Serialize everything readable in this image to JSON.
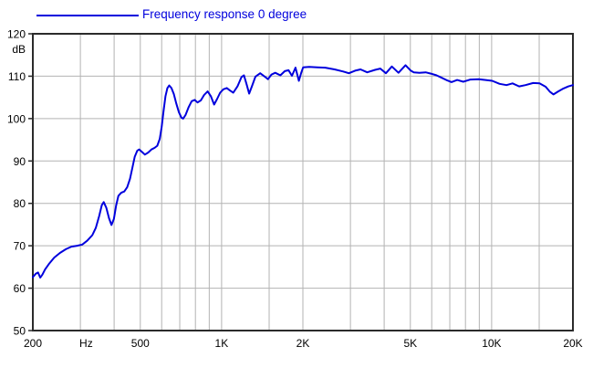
{
  "chart_data": {
    "type": "line",
    "legend": "Frequency response 0 degree",
    "x_scale": "log",
    "xlim": [
      200,
      20000
    ],
    "ylim": [
      50,
      120
    ],
    "y_unit_label": "dB",
    "x_unit_label": "Hz",
    "grid": true,
    "legend_position": "top-left",
    "colors": {
      "line": "#0000dd",
      "grid": "#b3b3b3",
      "axis": "#2b2b2b",
      "text": "#000000",
      "background": "#ffffff"
    },
    "x_gridlines": [
      300,
      400,
      500,
      600,
      700,
      800,
      900,
      1000,
      1500,
      2000,
      3000,
      4000,
      5000,
      6000,
      7000,
      8000,
      9000,
      10000,
      15000
    ],
    "y_gridlines": [
      60,
      70,
      80,
      90,
      100,
      110
    ],
    "x_ticks": [
      {
        "value": 200,
        "label": "200"
      },
      {
        "value": 315,
        "label": "Hz"
      },
      {
        "value": 500,
        "label": "500"
      },
      {
        "value": 1000,
        "label": "1K"
      },
      {
        "value": 2000,
        "label": "2K"
      },
      {
        "value": 5000,
        "label": "5K"
      },
      {
        "value": 10000,
        "label": "10K"
      },
      {
        "value": 20000,
        "label": "20K"
      }
    ],
    "y_ticks": [
      {
        "value": 120,
        "label": "120"
      },
      {
        "value": 110,
        "label": "110"
      },
      {
        "value": 100,
        "label": "100"
      },
      {
        "value": 90,
        "label": "90"
      },
      {
        "value": 80,
        "label": "80"
      },
      {
        "value": 70,
        "label": "70"
      },
      {
        "value": 60,
        "label": "60"
      },
      {
        "value": 50,
        "label": "50"
      }
    ],
    "series": [
      {
        "name": "Frequency response 0 degree",
        "color": "#0000dd",
        "points": [
          [
            200,
            62.6
          ],
          [
            205,
            63.4
          ],
          [
            209,
            63.7
          ],
          [
            213,
            62.5
          ],
          [
            217,
            63.2
          ],
          [
            222,
            64.4
          ],
          [
            230,
            65.8
          ],
          [
            240,
            67.2
          ],
          [
            252,
            68.3
          ],
          [
            265,
            69.2
          ],
          [
            278,
            69.8
          ],
          [
            292,
            70.0
          ],
          [
            305,
            70.3
          ],
          [
            318,
            71.2
          ],
          [
            332,
            72.5
          ],
          [
            342,
            74.2
          ],
          [
            352,
            77.0
          ],
          [
            360,
            79.6
          ],
          [
            366,
            80.3
          ],
          [
            374,
            79.0
          ],
          [
            383,
            76.5
          ],
          [
            391,
            74.9
          ],
          [
            399,
            76.3
          ],
          [
            407,
            79.5
          ],
          [
            415,
            81.8
          ],
          [
            425,
            82.5
          ],
          [
            436,
            82.8
          ],
          [
            447,
            83.8
          ],
          [
            458,
            85.8
          ],
          [
            468,
            88.6
          ],
          [
            477,
            91.0
          ],
          [
            487,
            92.4
          ],
          [
            495,
            92.7
          ],
          [
            508,
            92.1
          ],
          [
            520,
            91.5
          ],
          [
            535,
            92.0
          ],
          [
            550,
            92.7
          ],
          [
            565,
            93.1
          ],
          [
            578,
            93.6
          ],
          [
            590,
            95.2
          ],
          [
            600,
            98.0
          ],
          [
            610,
            102.0
          ],
          [
            620,
            105.3
          ],
          [
            630,
            107.2
          ],
          [
            640,
            107.8
          ],
          [
            652,
            107.2
          ],
          [
            665,
            105.8
          ],
          [
            680,
            103.5
          ],
          [
            695,
            101.5
          ],
          [
            710,
            100.2
          ],
          [
            720,
            100.0
          ],
          [
            735,
            100.8
          ],
          [
            755,
            102.7
          ],
          [
            775,
            104.1
          ],
          [
            795,
            104.4
          ],
          [
            815,
            103.8
          ],
          [
            838,
            104.3
          ],
          [
            862,
            105.6
          ],
          [
            888,
            106.4
          ],
          [
            912,
            105.3
          ],
          [
            938,
            103.3
          ],
          [
            962,
            104.6
          ],
          [
            988,
            106.1
          ],
          [
            1015,
            106.9
          ],
          [
            1045,
            107.2
          ],
          [
            1075,
            106.6
          ],
          [
            1105,
            106.1
          ],
          [
            1145,
            107.6
          ],
          [
            1185,
            109.8
          ],
          [
            1210,
            110.2
          ],
          [
            1238,
            108.1
          ],
          [
            1265,
            105.9
          ],
          [
            1295,
            107.6
          ],
          [
            1335,
            109.9
          ],
          [
            1390,
            110.7
          ],
          [
            1445,
            109.9
          ],
          [
            1485,
            109.3
          ],
          [
            1530,
            110.4
          ],
          [
            1580,
            110.8
          ],
          [
            1650,
            110.2
          ],
          [
            1715,
            111.2
          ],
          [
            1770,
            111.4
          ],
          [
            1822,
            110.1
          ],
          [
            1878,
            112.0
          ],
          [
            1932,
            108.9
          ],
          [
            1968,
            110.6
          ],
          [
            2005,
            112.1
          ],
          [
            2110,
            112.2
          ],
          [
            2260,
            112.1
          ],
          [
            2420,
            112.0
          ],
          [
            2620,
            111.6
          ],
          [
            2820,
            111.1
          ],
          [
            2960,
            110.7
          ],
          [
            3120,
            111.3
          ],
          [
            3270,
            111.6
          ],
          [
            3460,
            110.9
          ],
          [
            3700,
            111.5
          ],
          [
            3870,
            111.8
          ],
          [
            4060,
            110.7
          ],
          [
            4270,
            112.3
          ],
          [
            4520,
            110.8
          ],
          [
            4800,
            112.6
          ],
          [
            5020,
            111.3
          ],
          [
            5150,
            110.9
          ],
          [
            5400,
            110.8
          ],
          [
            5700,
            110.9
          ],
          [
            5950,
            110.6
          ],
          [
            6250,
            110.2
          ],
          [
            6550,
            109.6
          ],
          [
            6850,
            109.0
          ],
          [
            7100,
            108.6
          ],
          [
            7450,
            109.1
          ],
          [
            7850,
            108.7
          ],
          [
            8350,
            109.2
          ],
          [
            8950,
            109.3
          ],
          [
            9500,
            109.1
          ],
          [
            10050,
            108.9
          ],
          [
            10700,
            108.2
          ],
          [
            11350,
            107.9
          ],
          [
            11950,
            108.3
          ],
          [
            12650,
            107.6
          ],
          [
            13350,
            107.9
          ],
          [
            14250,
            108.4
          ],
          [
            15050,
            108.3
          ],
          [
            15850,
            107.5
          ],
          [
            16450,
            106.3
          ],
          [
            16950,
            105.7
          ],
          [
            17650,
            106.4
          ],
          [
            18450,
            107.1
          ],
          [
            19250,
            107.6
          ],
          [
            20000,
            107.9
          ]
        ]
      }
    ]
  }
}
